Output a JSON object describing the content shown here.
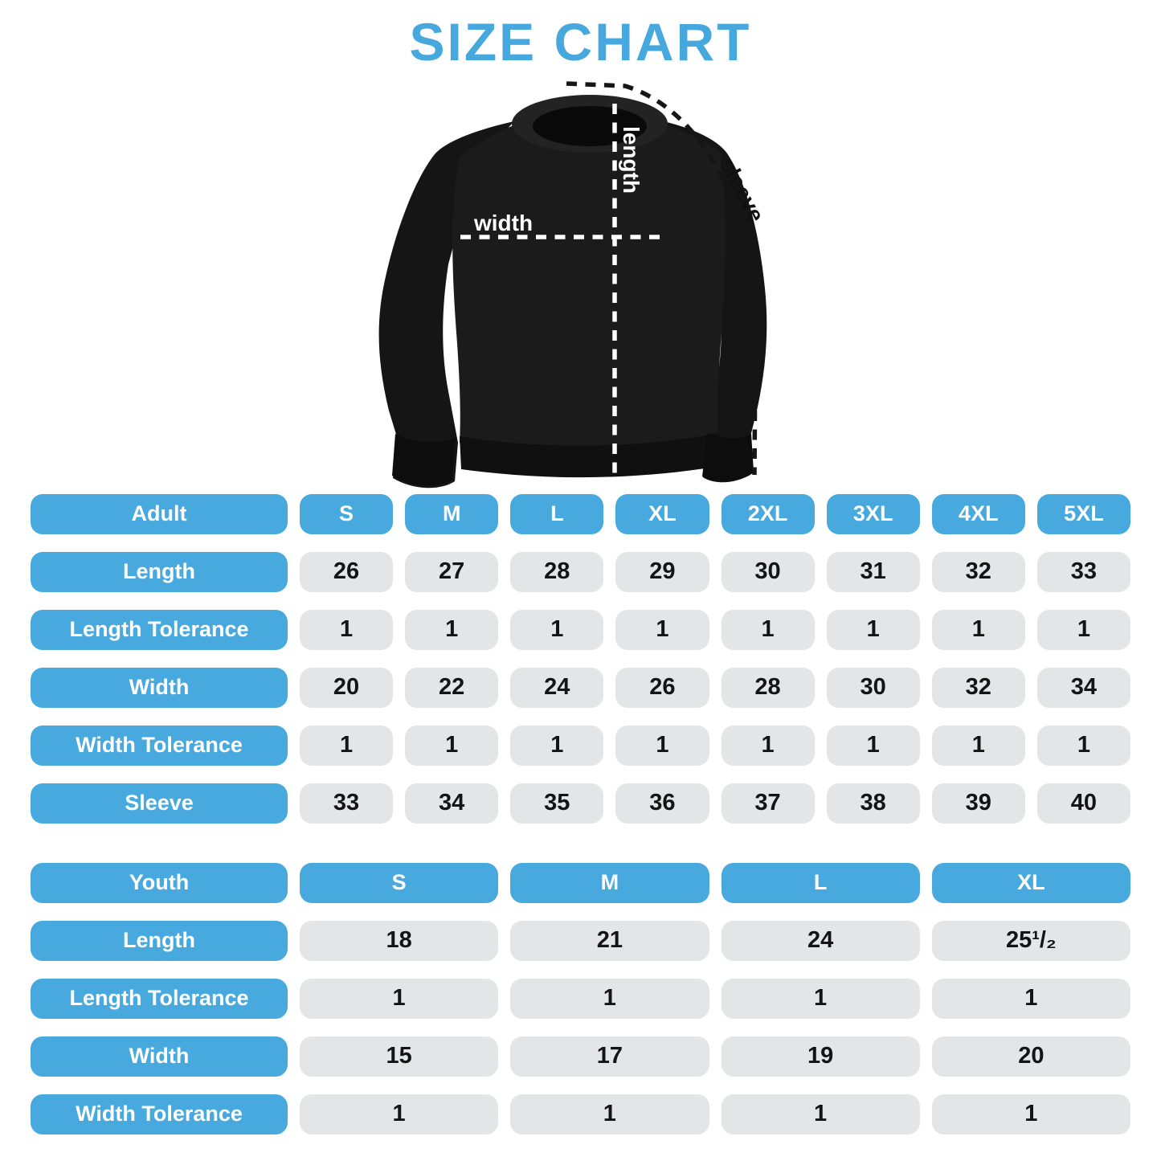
{
  "title": "SIZE CHART",
  "colors": {
    "accent_blue": "#47a9de",
    "cell_gray": "#e4e5e6",
    "garment_black": "#1b1b1b",
    "value_text": "#141414"
  },
  "diagram": {
    "width_label": "width",
    "length_label": "length",
    "sleeve_label": "sleeve"
  },
  "adult_table": {
    "header": [
      "Adult",
      "S",
      "M",
      "L",
      "XL",
      "2XL",
      "3XL",
      "4XL",
      "5XL"
    ],
    "rows": [
      {
        "label": "Length",
        "values": [
          "26",
          "27",
          "28",
          "29",
          "30",
          "31",
          "32",
          "33"
        ]
      },
      {
        "label": "Length Tolerance",
        "values": [
          "1",
          "1",
          "1",
          "1",
          "1",
          "1",
          "1",
          "1"
        ]
      },
      {
        "label": "Width",
        "values": [
          "20",
          "22",
          "24",
          "26",
          "28",
          "30",
          "32",
          "34"
        ]
      },
      {
        "label": "Width Tolerance",
        "values": [
          "1",
          "1",
          "1",
          "1",
          "1",
          "1",
          "1",
          "1"
        ]
      },
      {
        "label": "Sleeve",
        "values": [
          "33",
          "34",
          "35",
          "36",
          "37",
          "38",
          "39",
          "40"
        ]
      }
    ]
  },
  "youth_table": {
    "header": [
      "Youth",
      "S",
      "M",
      "L",
      "XL"
    ],
    "rows": [
      {
        "label": "Length",
        "values": [
          "18",
          "21",
          "24",
          "25¹/₂"
        ]
      },
      {
        "label": "Length Tolerance",
        "values": [
          "1",
          "1",
          "1",
          "1"
        ]
      },
      {
        "label": "Width",
        "values": [
          "15",
          "17",
          "19",
          "20"
        ]
      },
      {
        "label": "Width Tolerance",
        "values": [
          "1",
          "1",
          "1",
          "1"
        ]
      }
    ]
  },
  "chart_data": [
    {
      "type": "table",
      "title": "Adult size chart",
      "columns": [
        "Adult",
        "S",
        "M",
        "L",
        "XL",
        "2XL",
        "3XL",
        "4XL",
        "5XL"
      ],
      "rows": [
        [
          "Length",
          26,
          27,
          28,
          29,
          30,
          31,
          32,
          33
        ],
        [
          "Length Tolerance",
          1,
          1,
          1,
          1,
          1,
          1,
          1,
          1
        ],
        [
          "Width",
          20,
          22,
          24,
          26,
          28,
          30,
          32,
          34
        ],
        [
          "Width Tolerance",
          1,
          1,
          1,
          1,
          1,
          1,
          1,
          1
        ],
        [
          "Sleeve",
          33,
          34,
          35,
          36,
          37,
          38,
          39,
          40
        ]
      ]
    },
    {
      "type": "table",
      "title": "Youth size chart",
      "columns": [
        "Youth",
        "S",
        "M",
        "L",
        "XL"
      ],
      "rows": [
        [
          "Length",
          18,
          21,
          24,
          "25 1/2"
        ],
        [
          "Length Tolerance",
          1,
          1,
          1,
          1
        ],
        [
          "Width",
          15,
          17,
          19,
          20
        ],
        [
          "Width Tolerance",
          1,
          1,
          1,
          1
        ]
      ]
    }
  ]
}
